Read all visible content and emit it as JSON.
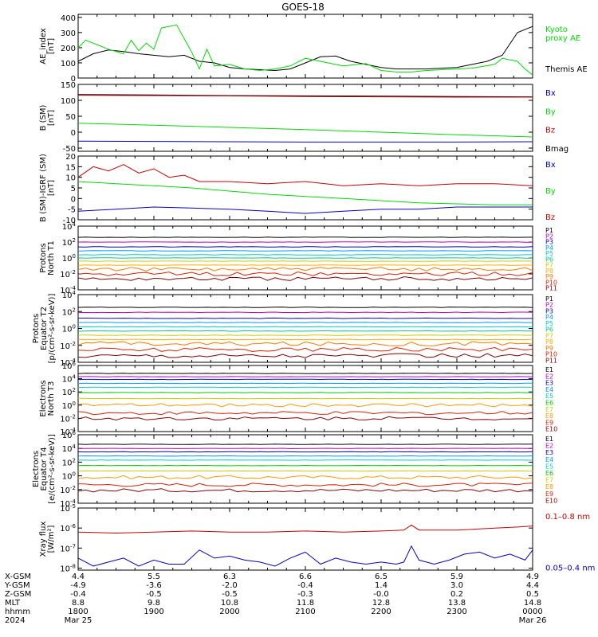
{
  "title": "GOES-18",
  "colors": {
    "black": "#000000",
    "green": "#00dd00",
    "red": "#cc0000",
    "blue": "#0000cc",
    "P": [
      "#000000",
      "#bb00bb",
      "#0000cc",
      "#0099ff",
      "#00cccc",
      "#00cc88",
      "#00cc00",
      "#cccc00",
      "#ff9900",
      "#dd4400",
      "#cc0000",
      "#880000"
    ]
  },
  "chart_data": [
    {
      "id": "ae",
      "type": "line",
      "ylabel": [
        "AE_index",
        "[nT]"
      ],
      "yticks": [
        "400",
        "300",
        "200",
        "100",
        "0"
      ],
      "ytick_values": [
        400,
        300,
        200,
        100,
        0
      ],
      "ylim": [
        0,
        420
      ],
      "scale": "linear",
      "legend": [
        {
          "label": "Kyoto",
          "color": "#00dd00"
        },
        {
          "label": "proxy AE",
          "color": "#00dd00"
        },
        {
          "label": "Themis AE",
          "color": "#000000"
        }
      ],
      "series": [
        {
          "name": "Themis AE",
          "color": "#000000",
          "x": [
            0,
            0.2,
            0.4,
            0.6,
            0.8,
            1.0,
            1.2,
            1.4,
            1.6,
            1.8,
            2.0,
            2.2,
            2.4,
            2.6,
            2.8,
            3.0,
            3.2,
            3.4,
            3.6,
            3.8,
            4.0,
            4.2,
            4.4,
            4.6,
            4.8,
            5.0,
            5.2,
            5.4,
            5.6,
            5.8,
            6.0
          ],
          "y": [
            110,
            160,
            185,
            175,
            160,
            150,
            140,
            150,
            110,
            100,
            70,
            60,
            55,
            50,
            60,
            100,
            140,
            145,
            110,
            90,
            70,
            60,
            60,
            60,
            65,
            70,
            90,
            110,
            150,
            300,
            340
          ]
        },
        {
          "name": "Kyoto proxy AE",
          "color": "#00dd00",
          "x": [
            0,
            0.1,
            0.3,
            0.4,
            0.6,
            0.7,
            0.8,
            0.9,
            1.0,
            1.1,
            1.3,
            1.4,
            1.5,
            1.6,
            1.7,
            1.8,
            2.0,
            2.2,
            2.4,
            2.6,
            2.8,
            3.0,
            3.1,
            3.3,
            3.5,
            3.8,
            4.0,
            4.2,
            4.4,
            4.6,
            4.8,
            5.0,
            5.2,
            5.5,
            5.6,
            5.8,
            5.9,
            6.0
          ],
          "y": [
            200,
            250,
            210,
            190,
            160,
            250,
            180,
            230,
            190,
            330,
            350,
            260,
            170,
            60,
            190,
            80,
            90,
            60,
            50,
            60,
            80,
            130,
            120,
            100,
            80,
            95,
            50,
            40,
            40,
            50,
            55,
            60,
            65,
            90,
            130,
            110,
            60,
            20
          ]
        }
      ]
    },
    {
      "id": "bsm",
      "type": "line",
      "ylabel": [
        "B (SM)",
        "[nT]"
      ],
      "yticks": [
        "150",
        "100",
        "50",
        "0",
        "-50"
      ],
      "ytick_values": [
        150,
        100,
        50,
        0,
        -50
      ],
      "ylim": [
        -60,
        150
      ],
      "scale": "linear",
      "legend": [
        {
          "label": "Bx",
          "color": "#0000cc"
        },
        {
          "label": "By",
          "color": "#00dd00"
        },
        {
          "label": "Bz",
          "color": "#cc0000"
        },
        {
          "label": "Bmag",
          "color": "#000000"
        }
      ],
      "series": [
        {
          "name": "Bmag",
          "color": "#000000",
          "x": [
            0,
            1,
            2,
            3,
            4,
            5,
            6
          ],
          "y": [
            118,
            117,
            115,
            114,
            113,
            112,
            111
          ]
        },
        {
          "name": "Bz",
          "color": "#cc0000",
          "x": [
            0,
            1,
            2,
            3,
            4,
            5,
            6
          ],
          "y": [
            116,
            115,
            114,
            112,
            111,
            110,
            110
          ]
        },
        {
          "name": "By",
          "color": "#00dd00",
          "x": [
            0,
            1,
            2,
            3,
            4,
            5,
            6
          ],
          "y": [
            28,
            22,
            15,
            8,
            0,
            -8,
            -15
          ]
        },
        {
          "name": "Bx",
          "color": "#0000cc",
          "x": [
            0,
            1,
            2,
            3,
            4,
            5,
            6
          ],
          "y": [
            -28,
            -29,
            -30,
            -31,
            -31,
            -31,
            -30
          ]
        }
      ]
    },
    {
      "id": "bigrf",
      "type": "line",
      "ylabel": [
        "B (SM)-IGRF (SM)",
        "[nT]"
      ],
      "yticks": [
        "20",
        "15",
        "10",
        "5",
        "0",
        "-5",
        "-10"
      ],
      "ytick_values": [
        20,
        15,
        10,
        5,
        0,
        -5,
        -10
      ],
      "ylim": [
        -10,
        20
      ],
      "scale": "linear",
      "legend": [
        {
          "label": "Bx",
          "color": "#0000cc"
        },
        {
          "label": "By",
          "color": "#00dd00"
        },
        {
          "label": "Bz",
          "color": "#cc0000"
        }
      ],
      "series": [
        {
          "name": "Bz",
          "color": "#cc0000",
          "x": [
            0,
            0.2,
            0.4,
            0.6,
            0.8,
            1.0,
            1.2,
            1.4,
            1.6,
            2.0,
            2.5,
            3.0,
            3.5,
            4.0,
            4.5,
            5.0,
            5.5,
            6.0
          ],
          "y": [
            10,
            15,
            13,
            16,
            12,
            14,
            10,
            11,
            8,
            8,
            7,
            8,
            6,
            7,
            6,
            7,
            7,
            6
          ]
        },
        {
          "name": "By",
          "color": "#00dd00",
          "x": [
            0,
            0.5,
            1,
            1.5,
            2,
            2.5,
            3,
            3.5,
            4,
            4.5,
            5,
            5.5,
            6
          ],
          "y": [
            8,
            7,
            6,
            5,
            3.5,
            2,
            1,
            0,
            -1,
            -2,
            -2.5,
            -3,
            -3
          ]
        },
        {
          "name": "Bx",
          "color": "#0000cc",
          "x": [
            0,
            0.5,
            1,
            1.5,
            2,
            2.5,
            3,
            3.5,
            4,
            4.5,
            5,
            5.5,
            6
          ],
          "y": [
            -6,
            -5,
            -4,
            -4.5,
            -5,
            -6,
            -7,
            -6,
            -5,
            -5,
            -4,
            -4,
            -4
          ]
        }
      ]
    },
    {
      "id": "pn",
      "type": "line",
      "scale": "log",
      "ylabel": [
        "Protons",
        "North T1"
      ],
      "yticks": [
        "10^4",
        "10^2",
        "10^0",
        "10^-2",
        "10^-4"
      ],
      "ytick_values": [
        4,
        2,
        0,
        -2,
        -4
      ],
      "ylim": [
        -4,
        4
      ],
      "legend": [
        {
          "label": "P1",
          "color": "#000000"
        },
        {
          "label": "P2",
          "color": "#bb00bb"
        },
        {
          "label": "P3",
          "color": "#0000cc"
        },
        {
          "label": "P4",
          "color": "#0099ff"
        },
        {
          "label": "P5",
          "color": "#00cccc"
        },
        {
          "label": "P6",
          "color": "#00cc88"
        },
        {
          "label": "P7",
          "color": "#cccc00"
        },
        {
          "label": "P8",
          "color": "#ffaa00"
        },
        {
          "label": "P9",
          "color": "#ff7700"
        },
        {
          "label": "P10",
          "color": "#dd2200"
        },
        {
          "label": "P11",
          "color": "#880000"
        }
      ],
      "levels": [
        2.6,
        2.0,
        1.4,
        0.9,
        0.4,
        0.0,
        -0.4,
        -0.9,
        -1.4,
        -2.0,
        -2.6
      ]
    },
    {
      "id": "pe",
      "type": "line",
      "scale": "log",
      "ylabel": [
        "Protons",
        "Equator T2",
        "[p/(cm²-s-sr-keV)]"
      ],
      "yticks": [
        "10^4",
        "10^2",
        "10^0",
        "10^-2",
        "10^-4"
      ],
      "ytick_values": [
        4,
        2,
        0,
        -2,
        -4
      ],
      "ylim": [
        -4,
        4
      ],
      "legend": [
        {
          "label": "P1",
          "color": "#000000"
        },
        {
          "label": "P2",
          "color": "#bb00bb"
        },
        {
          "label": "P3",
          "color": "#0000cc"
        },
        {
          "label": "P4",
          "color": "#0099ff"
        },
        {
          "label": "P5",
          "color": "#00cccc"
        },
        {
          "label": "P6",
          "color": "#00cc88"
        },
        {
          "label": "P7",
          "color": "#cccc00"
        },
        {
          "label": "P8",
          "color": "#ffaa00"
        },
        {
          "label": "P9",
          "color": "#ff7700"
        },
        {
          "label": "P10",
          "color": "#dd2200"
        },
        {
          "label": "P11",
          "color": "#880000"
        }
      ],
      "levels": [
        2.5,
        1.9,
        1.2,
        0.7,
        0.2,
        -0.3,
        -0.8,
        -1.3,
        -1.8,
        -2.5,
        -3.2
      ]
    },
    {
      "id": "en",
      "type": "line",
      "scale": "log",
      "ylabel": [
        "Electrons",
        "North T3"
      ],
      "yticks": [
        "10^6",
        "10^4",
        "10^2",
        "10^0",
        "10^-2",
        "10^-4"
      ],
      "ytick_values": [
        6,
        4,
        2,
        0,
        -2,
        -4
      ],
      "ylim": [
        -4,
        6
      ],
      "legend": [
        {
          "label": "E1",
          "color": "#000000"
        },
        {
          "label": "E2",
          "color": "#bb00bb"
        },
        {
          "label": "E3",
          "color": "#0000cc"
        },
        {
          "label": "E4",
          "color": "#0099ff"
        },
        {
          "label": "E5",
          "color": "#00cccc"
        },
        {
          "label": "E6",
          "color": "#00cc00"
        },
        {
          "label": "E7",
          "color": "#cccc00"
        },
        {
          "label": "E8",
          "color": "#ff9900"
        },
        {
          "label": "E9",
          "color": "#dd2200"
        },
        {
          "label": "E10",
          "color": "#880000"
        }
      ],
      "levels": [
        4.8,
        4.3,
        3.9,
        3.3,
        2.7,
        1.9,
        1.0,
        0.0,
        -1.2,
        -2.0
      ]
    },
    {
      "id": "ee",
      "type": "line",
      "scale": "log",
      "ylabel": [
        "Electrons",
        "Equator T4",
        "[e/(cm²-s-sr-keV)]"
      ],
      "yticks": [
        "10^6",
        "10^4",
        "10^2",
        "10^0",
        "10^-2",
        "10^-4"
      ],
      "ytick_values": [
        6,
        4,
        2,
        0,
        -2,
        -4
      ],
      "ylim": [
        -4,
        6
      ],
      "legend": [
        {
          "label": "E1",
          "color": "#000000"
        },
        {
          "label": "E2",
          "color": "#bb00bb"
        },
        {
          "label": "E3",
          "color": "#0000cc"
        },
        {
          "label": "E4",
          "color": "#0099ff"
        },
        {
          "label": "E5",
          "color": "#00cccc"
        },
        {
          "label": "E6",
          "color": "#00cc00"
        },
        {
          "label": "E7",
          "color": "#cccc00"
        },
        {
          "label": "E8",
          "color": "#ff9900"
        },
        {
          "label": "E9",
          "color": "#dd2200"
        },
        {
          "label": "E10",
          "color": "#880000"
        }
      ],
      "levels": [
        4.6,
        4.0,
        3.5,
        2.9,
        2.3,
        1.5,
        0.7,
        -0.2,
        -1.3,
        -2.1
      ]
    },
    {
      "id": "xray",
      "type": "line",
      "scale": "log",
      "ylabel": [
        "Xray flux",
        "[W/m²]"
      ],
      "yticks": [
        "10^-5",
        "10^-6",
        "10^-7",
        "10^-8"
      ],
      "ytick_values": [
        -5,
        -6,
        -7,
        -8
      ],
      "ylim": [
        -8.1,
        -5
      ],
      "legend": [
        {
          "label": "0.1–0.8 nm",
          "color": "#cc0000"
        },
        {
          "label": "0.05–0.4 nm",
          "color": "#0000cc"
        }
      ],
      "series": [
        {
          "name": "0.1–0.8 nm",
          "color": "#cc0000",
          "x": [
            0,
            0.5,
            1,
            1.5,
            2,
            2.5,
            3,
            3.5,
            4,
            4.3,
            4.4,
            4.5,
            5,
            5.5,
            5.8,
            6
          ],
          "y": [
            -6.2,
            -6.25,
            -6.2,
            -6.15,
            -6.2,
            -6.2,
            -6.15,
            -6.2,
            -6.15,
            -6.1,
            -5.85,
            -6.1,
            -6.1,
            -6.0,
            -5.95,
            -5.9
          ]
        },
        {
          "name": "0.05–0.4 nm",
          "color": "#0000cc",
          "x": [
            0,
            0.2,
            0.4,
            0.6,
            0.8,
            1.0,
            1.2,
            1.4,
            1.6,
            1.8,
            2.0,
            2.2,
            2.4,
            2.6,
            2.8,
            3.0,
            3.2,
            3.4,
            3.6,
            3.8,
            4.0,
            4.2,
            4.3,
            4.4,
            4.5,
            4.7,
            4.9,
            5.1,
            5.3,
            5.5,
            5.7,
            5.9,
            6.0
          ],
          "y": [
            -7.5,
            -7.9,
            -7.7,
            -7.5,
            -7.9,
            -7.6,
            -7.8,
            -7.8,
            -7.1,
            -7.5,
            -7.4,
            -7.6,
            -7.7,
            -7.9,
            -7.5,
            -7.2,
            -7.8,
            -7.5,
            -7.7,
            -7.8,
            -7.7,
            -7.8,
            -7.7,
            -6.9,
            -7.6,
            -7.8,
            -7.6,
            -7.3,
            -7.2,
            -7.5,
            -7.3,
            -7.6,
            -7.1
          ]
        }
      ]
    }
  ],
  "x_axis": {
    "row_labels": [
      "X-GSM",
      "Y-GSM",
      "Z-GSM",
      "MLT",
      "hhmm",
      "2024"
    ],
    "ticks": [
      {
        "x": 0,
        "vals": [
          "4.4",
          "-4.9",
          "-0.4",
          "8.8",
          "1800",
          "Mar 25"
        ]
      },
      {
        "x": 1,
        "vals": [
          "5.5",
          "-3.6",
          "-0.5",
          "9.8",
          "1900",
          ""
        ]
      },
      {
        "x": 2,
        "vals": [
          "6.3",
          "-2.0",
          "-0.5",
          "10.8",
          "2000",
          ""
        ]
      },
      {
        "x": 3,
        "vals": [
          "6.6",
          "-0.4",
          "-0.3",
          "11.8",
          "2100",
          ""
        ]
      },
      {
        "x": 4,
        "vals": [
          "6.5",
          "1.4",
          "-0.0",
          "12.8",
          "2200",
          ""
        ]
      },
      {
        "x": 5,
        "vals": [
          "5.9",
          "3.0",
          "0.2",
          "13.8",
          "2300",
          ""
        ]
      },
      {
        "x": 6,
        "vals": [
          "4.9",
          "4.4",
          "0.5",
          "14.8",
          "0000",
          "Mar 26"
        ]
      }
    ]
  }
}
